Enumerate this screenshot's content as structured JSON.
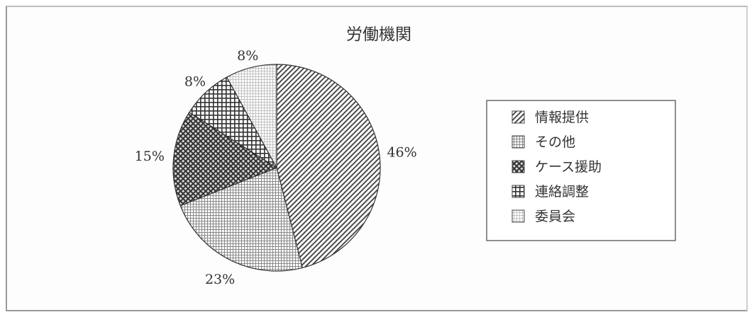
{
  "chart_data": {
    "type": "pie",
    "title": "労働機関",
    "categories": [
      "情報提供",
      "その他",
      "ケース援助",
      "連絡調整",
      "委員会"
    ],
    "values": [
      46,
      23,
      15,
      8,
      8
    ],
    "labels": [
      "46%",
      "23%",
      "15%",
      "8%",
      "8%"
    ],
    "legend": {
      "placement": "right",
      "entries": [
        "情報提供",
        "その他",
        "ケース援助",
        "連絡調整",
        "委員会"
      ]
    },
    "start_angle": "top",
    "direction": "clockwise"
  }
}
